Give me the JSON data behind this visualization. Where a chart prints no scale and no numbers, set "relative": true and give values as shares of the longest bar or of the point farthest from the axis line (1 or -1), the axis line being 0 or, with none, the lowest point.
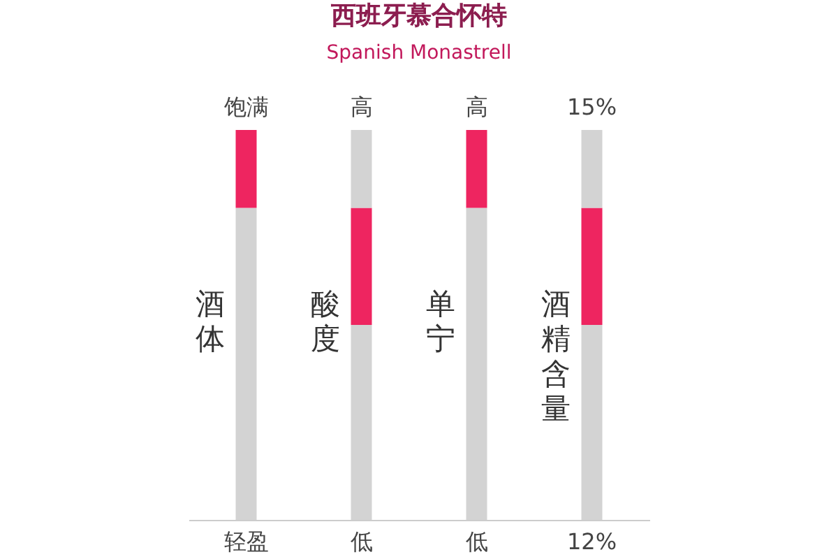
{
  "chart_data": {
    "type": "bar",
    "title": "西班牙慕合怀特",
    "subtitle": "Spanish Monastrell",
    "relative": true,
    "categories": [
      "酒体",
      "酸度",
      "单宁",
      "酒精含量"
    ],
    "stacked": true,
    "series": [
      {
        "color": "#d3d3d3",
        "values": [
          0.8,
          0.5,
          0.8,
          0.5
        ]
      },
      {
        "color": "#ee2560",
        "values": [
          0.2,
          0.3,
          0.2,
          0.3
        ]
      },
      {
        "color": "#d3d3d3",
        "values": [
          0,
          0.2,
          0,
          0.2
        ]
      }
    ],
    "annotations": [
      "饱满",
      "轻盈",
      "高",
      "低",
      "高",
      "低",
      "15%",
      "12%"
    ]
  }
}
